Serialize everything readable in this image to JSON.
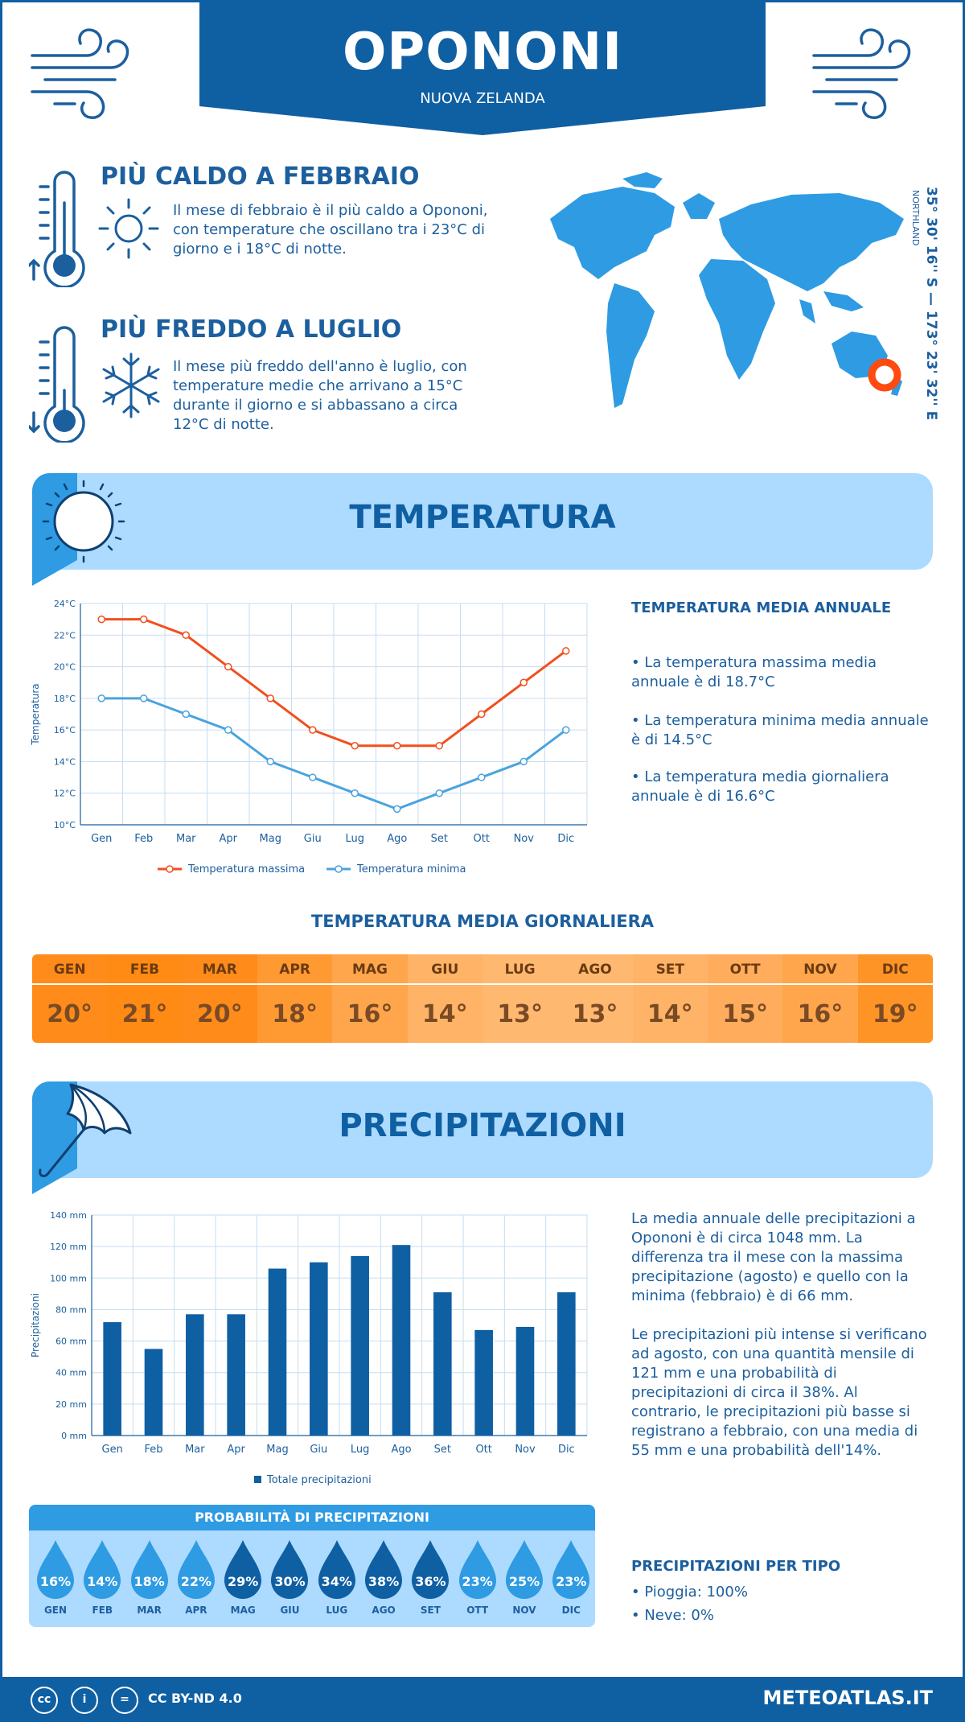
{
  "header": {
    "city": "OPONONI",
    "country": "NUOVA ZELANDA"
  },
  "facts": {
    "warm": {
      "title": "PIÙ CALDO A FEBBRAIO",
      "text": "Il mese di febbraio è il più caldo a Opononi, con temperature che oscillano tra i 23°C di giorno e i 18°C di notte."
    },
    "cold": {
      "title": "PIÙ FREDDO A LUGLIO",
      "text": "Il mese più freddo dell'anno è luglio, con temperature medie che arrivano a 15°C durante il giorno e si abbassano a circa 12°C di notte."
    }
  },
  "location": {
    "coordinates": "35° 30' 16'' S — 173° 23' 32'' E",
    "region": "NORTHLAND"
  },
  "temperature": {
    "section_title": "TEMPERATURA",
    "annual_title": "TEMPERATURA MEDIA ANNUALE",
    "annual_max": "• La temperatura massima media annuale è di 18.7°C",
    "annual_min": "• La temperatura minima media annuale è di 14.5°C",
    "annual_avg": "• La temperatura media giornaliera annuale è di 16.6°C",
    "daily_title": "TEMPERATURA MEDIA GIORNALIERA",
    "daily": [
      {
        "month": "GEN",
        "value": "20°",
        "color": "#ff8c1a"
      },
      {
        "month": "FEB",
        "value": "21°",
        "color": "#ff8a14"
      },
      {
        "month": "MAR",
        "value": "20°",
        "color": "#ff8c1a"
      },
      {
        "month": "APR",
        "value": "18°",
        "color": "#ff9a33"
      },
      {
        "month": "MAG",
        "value": "16°",
        "color": "#ffa64d"
      },
      {
        "month": "GIU",
        "value": "14°",
        "color": "#ffb366"
      },
      {
        "month": "LUG",
        "value": "13°",
        "color": "#ffb870"
      },
      {
        "month": "AGO",
        "value": "13°",
        "color": "#ffb870"
      },
      {
        "month": "SET",
        "value": "14°",
        "color": "#ffb366"
      },
      {
        "month": "OTT",
        "value": "15°",
        "color": "#ffad5c"
      },
      {
        "month": "NOV",
        "value": "16°",
        "color": "#ffa64d"
      },
      {
        "month": "DIC",
        "value": "19°",
        "color": "#ff9426"
      }
    ]
  },
  "precipitation": {
    "section_title": "PRECIPITAZIONI",
    "text1": "La media annuale delle precipitazioni a Opononi è di circa 1048 mm. La differenza tra il mese con la massima precipitazione (agosto) e quello con la minima (febbraio) è di 66 mm.",
    "text2": "Le precipitazioni più intense si verificano ad agosto, con una quantità mensile di 121 mm e una probabilità di precipitazioni di circa il 38%. Al contrario, le precipitazioni più basse si registrano a febbraio, con una media di 55 mm e una probabilità dell'14%.",
    "prob_title": "PROBABILITÀ DI PRECIPITAZIONI",
    "probability": [
      {
        "month": "GEN",
        "value": "16%",
        "color": "#2e9be3"
      },
      {
        "month": "FEB",
        "value": "14%",
        "color": "#2e9be3"
      },
      {
        "month": "MAR",
        "value": "18%",
        "color": "#2e9be3"
      },
      {
        "month": "APR",
        "value": "22%",
        "color": "#2e9be3"
      },
      {
        "month": "MAG",
        "value": "29%",
        "color": "#0f5fa3"
      },
      {
        "month": "GIU",
        "value": "30%",
        "color": "#0f5fa3"
      },
      {
        "month": "LUG",
        "value": "34%",
        "color": "#0f5fa3"
      },
      {
        "month": "AGO",
        "value": "38%",
        "color": "#0f5fa3"
      },
      {
        "month": "SET",
        "value": "36%",
        "color": "#0f5fa3"
      },
      {
        "month": "OTT",
        "value": "23%",
        "color": "#2e9be3"
      },
      {
        "month": "NOV",
        "value": "25%",
        "color": "#2e9be3"
      },
      {
        "month": "DIC",
        "value": "23%",
        "color": "#2e9be3"
      }
    ],
    "type_title": "PRECIPITAZIONI PER TIPO",
    "rain": "• Pioggia: 100%",
    "snow": "• Neve: 0%"
  },
  "chart_data": [
    {
      "type": "line",
      "categories": [
        "Gen",
        "Feb",
        "Mar",
        "Apr",
        "Mag",
        "Giu",
        "Lug",
        "Ago",
        "Set",
        "Ott",
        "Nov",
        "Dic"
      ],
      "series": [
        {
          "name": "Temperatura massima",
          "values": [
            23,
            23,
            22,
            20,
            18,
            16,
            15,
            15,
            15,
            17,
            19,
            21
          ],
          "color": "#f0501e"
        },
        {
          "name": "Temperatura minima",
          "values": [
            18,
            18,
            17,
            16,
            14,
            13,
            12,
            11,
            12,
            13,
            14,
            16
          ],
          "color": "#4aa3df"
        }
      ],
      "ylabel": "Temperatura",
      "ylim": [
        10,
        24
      ],
      "yticks": [
        "10°C",
        "12°C",
        "14°C",
        "16°C",
        "18°C",
        "20°C",
        "22°C",
        "24°C"
      ],
      "grid": true,
      "legend": "bottom"
    },
    {
      "type": "bar",
      "categories": [
        "Gen",
        "Feb",
        "Mar",
        "Apr",
        "Mag",
        "Giu",
        "Lug",
        "Ago",
        "Set",
        "Ott",
        "Nov",
        "Dic"
      ],
      "series": [
        {
          "name": "Totale precipitazioni",
          "values": [
            72,
            55,
            77,
            77,
            106,
            110,
            114,
            121,
            91,
            67,
            69,
            91
          ],
          "color": "#0f5fa3"
        }
      ],
      "ylabel": "Precipitazioni",
      "ylim": [
        0,
        140
      ],
      "yticks": [
        "0 mm",
        "20 mm",
        "40 mm",
        "60 mm",
        "80 mm",
        "100 mm",
        "120 mm",
        "140 mm"
      ],
      "grid": true,
      "legend": "bottom"
    }
  ],
  "footer": {
    "license": "CC BY-ND 4.0",
    "site": "METEOATLAS.IT"
  }
}
